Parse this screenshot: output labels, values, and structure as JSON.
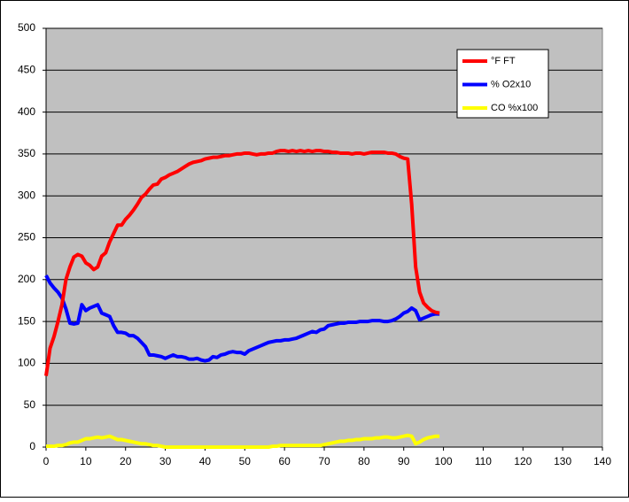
{
  "chart_data": {
    "type": "line",
    "x": [
      0,
      1,
      2,
      3,
      4,
      5,
      6,
      7,
      8,
      9,
      10,
      11,
      12,
      13,
      14,
      15,
      16,
      17,
      18,
      19,
      20,
      21,
      22,
      23,
      24,
      25,
      26,
      27,
      28,
      29,
      30,
      31,
      32,
      33,
      34,
      35,
      36,
      37,
      38,
      39,
      40,
      41,
      42,
      43,
      44,
      45,
      46,
      47,
      48,
      49,
      50,
      51,
      52,
      53,
      54,
      55,
      56,
      57,
      58,
      59,
      60,
      61,
      62,
      63,
      64,
      65,
      66,
      67,
      68,
      69,
      70,
      71,
      72,
      73,
      74,
      75,
      76,
      77,
      78,
      79,
      80,
      81,
      82,
      83,
      84,
      85,
      86,
      87,
      88,
      89,
      90,
      91,
      92,
      93,
      94,
      95,
      96,
      97,
      98,
      99
    ],
    "series": [
      {
        "name": "°F FT",
        "color": "#ff0000",
        "values": [
          85,
          118,
          132,
          150,
          170,
          200,
          215,
          227,
          230,
          228,
          220,
          217,
          212,
          215,
          228,
          232,
          245,
          255,
          265,
          265,
          272,
          277,
          283,
          290,
          298,
          302,
          308,
          313,
          314,
          320,
          322,
          325,
          327,
          329,
          332,
          335,
          338,
          340,
          341,
          342,
          344,
          345,
          346,
          346,
          347,
          348,
          348,
          349,
          350,
          350,
          351,
          351,
          350,
          349,
          350,
          350,
          351,
          351,
          353,
          354,
          354,
          353,
          354,
          353,
          354,
          353,
          354,
          353,
          354,
          354,
          353,
          353,
          352,
          352,
          351,
          351,
          351,
          350,
          351,
          351,
          350,
          351,
          352,
          352,
          352,
          352,
          351,
          351,
          350,
          347,
          345,
          344,
          290,
          215,
          185,
          172,
          167,
          163,
          161,
          160
        ]
      },
      {
        "name": "% O2x10",
        "color": "#0000ff",
        "values": [
          205,
          196,
          190,
          185,
          178,
          165,
          148,
          147,
          148,
          170,
          163,
          166,
          168,
          170,
          160,
          158,
          156,
          145,
          137,
          137,
          136,
          133,
          133,
          130,
          125,
          120,
          110,
          110,
          109,
          108,
          106,
          108,
          110,
          108,
          108,
          107,
          105,
          105,
          106,
          104,
          103,
          104,
          108,
          107,
          110,
          111,
          113,
          114,
          113,
          113,
          111,
          115,
          117,
          119,
          121,
          123,
          125,
          126,
          127,
          127,
          128,
          128,
          129,
          130,
          132,
          134,
          136,
          138,
          137,
          140,
          141,
          145,
          146,
          147,
          148,
          148,
          149,
          149,
          149,
          150,
          150,
          150,
          151,
          151,
          151,
          150,
          150,
          151,
          153,
          156,
          160,
          162,
          166,
          163,
          152,
          154,
          156,
          158,
          159,
          159
        ]
      },
      {
        "name": "CO %x100",
        "color": "#ffff00",
        "values": [
          1,
          1,
          1,
          2,
          2,
          3,
          5,
          6,
          6,
          8,
          10,
          10,
          11,
          12,
          11,
          12,
          13,
          11,
          9,
          9,
          8,
          7,
          6,
          5,
          4,
          4,
          3,
          2,
          2,
          1,
          0,
          0,
          0,
          0,
          0,
          0,
          0,
          0,
          0,
          0,
          0,
          0,
          0,
          0,
          0,
          0,
          0,
          0,
          0,
          0,
          0,
          0,
          0,
          0,
          0,
          0,
          0,
          1,
          1,
          2,
          2,
          2,
          2,
          2,
          2,
          2,
          2,
          2,
          2,
          2,
          3,
          4,
          5,
          6,
          7,
          7,
          8,
          8,
          9,
          9,
          10,
          10,
          10,
          11,
          11,
          12,
          12,
          11,
          11,
          12,
          13,
          14,
          13,
          4,
          6,
          9,
          11,
          12,
          13,
          13
        ]
      }
    ],
    "xlim": [
      0,
      140
    ],
    "xticks": [
      0,
      10,
      20,
      30,
      40,
      50,
      60,
      70,
      80,
      90,
      100,
      110,
      120,
      130,
      140
    ],
    "ylim": [
      0,
      500
    ],
    "yticks": [
      0,
      50,
      100,
      150,
      200,
      250,
      300,
      350,
      400,
      450,
      500
    ],
    "grid": true,
    "legend": "upper-right"
  }
}
